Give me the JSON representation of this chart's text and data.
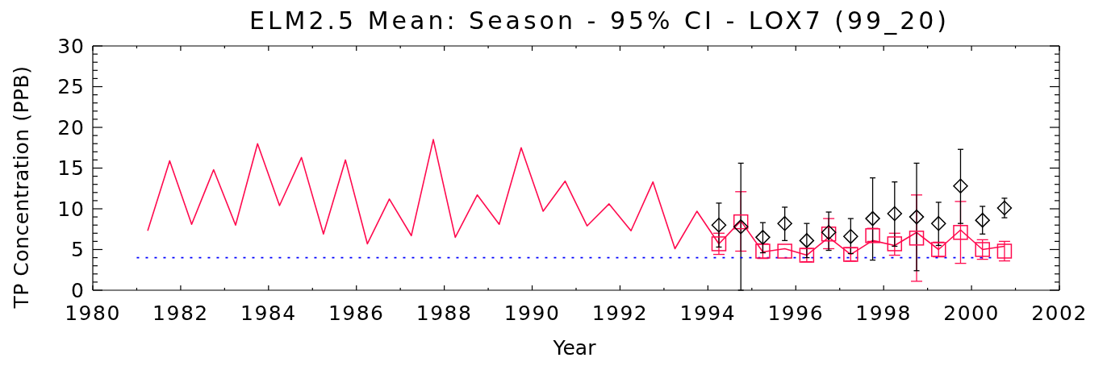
{
  "chart_data": {
    "type": "line",
    "title": "ELM2.5 Mean: Season - 95% CI - LOX7 (99_20)",
    "xlabel": "Year",
    "ylabel": "TP Concentration (PPB)",
    "xlim": [
      1980,
      2002
    ],
    "xticks": [
      1980,
      {
        "value": 1981,
        "label": null
      },
      1982,
      {
        "value": 1983,
        "label": null
      },
      1984,
      {
        "value": 1985,
        "label": null
      },
      1986,
      {
        "value": 1987,
        "label": null
      },
      1988,
      {
        "value": 1989,
        "label": null
      },
      1990,
      {
        "value": 1991,
        "label": null
      },
      1992,
      {
        "value": 1993,
        "label": null
      },
      1994,
      {
        "value": 1995,
        "label": null
      },
      1996,
      {
        "value": 1997,
        "label": null
      },
      1998,
      {
        "value": 1999,
        "label": null
      },
      2000,
      {
        "value": 2001,
        "label": null
      },
      2002
    ],
    "ylim": [
      0,
      30
    ],
    "yticks": [
      0,
      {
        "value": 1,
        "label": null
      },
      {
        "value": 2,
        "label": null
      },
      {
        "value": 3,
        "label": null
      },
      {
        "value": 4,
        "label": null
      },
      5,
      {
        "value": 6,
        "label": null
      },
      {
        "value": 7,
        "label": null
      },
      {
        "value": 8,
        "label": null
      },
      {
        "value": 9,
        "label": null
      },
      10,
      {
        "value": 11,
        "label": null
      },
      {
        "value": 12,
        "label": null
      },
      {
        "value": 13,
        "label": null
      },
      {
        "value": 14,
        "label": null
      },
      15,
      {
        "value": 16,
        "label": null
      },
      {
        "value": 17,
        "label": null
      },
      {
        "value": 18,
        "label": null
      },
      {
        "value": 19,
        "label": null
      },
      20,
      {
        "value": 21,
        "label": null
      },
      {
        "value": 22,
        "label": null
      },
      {
        "value": 23,
        "label": null
      },
      {
        "value": 24,
        "label": null
      },
      25,
      {
        "value": 26,
        "label": null
      },
      {
        "value": 27,
        "label": null
      },
      {
        "value": 28,
        "label": null
      },
      {
        "value": 29,
        "label": null
      },
      30
    ],
    "series": [
      {
        "color": "#ff0a4e",
        "x": [
          1981.25,
          1981.75,
          1982.25,
          1982.75,
          1983.25,
          1983.75,
          1984.25,
          1984.75,
          1985.25,
          1985.75,
          1986.25,
          1986.75,
          1987.25,
          1987.75,
          1988.25,
          1988.75,
          1989.25,
          1989.75,
          1990.25,
          1990.75,
          1991.25,
          1991.75,
          1992.25,
          1992.75,
          1993.25,
          1993.75,
          1994.25,
          1994.75,
          1995.25,
          1995.75,
          1996.25,
          1996.75,
          1997.25,
          1997.75,
          1998.25,
          1998.75,
          1999.25,
          1999.75,
          2000.25,
          2000.75
        ],
        "values": [
          7.3,
          15.9,
          8.1,
          14.8,
          8.0,
          18.0,
          10.4,
          16.3,
          6.9,
          16.0,
          5.7,
          11.2,
          6.7,
          18.5,
          6.5,
          11.7,
          8.1,
          17.5,
          9.7,
          13.4,
          7.9,
          10.6,
          7.3,
          13.3,
          5.1,
          9.7,
          5.7,
          8.5,
          4.7,
          5.1,
          4.3,
          6.5,
          4.4,
          6.1,
          5.5,
          7.1,
          5.0,
          7.4,
          5.0,
          5.4
        ]
      },
      {
        "type": "scatter",
        "color": "#ff0a4e",
        "marker": "square",
        "x": [
          1994.25,
          1994.75,
          1995.25,
          1995.75,
          1996.25,
          1996.75,
          1997.25,
          1997.75,
          1998.25,
          1998.75,
          1999.25,
          1999.75,
          2000.25,
          2000.75
        ],
        "values": [
          5.7,
          8.4,
          4.8,
          4.8,
          4.3,
          6.9,
          4.4,
          6.7,
          5.7,
          6.4,
          5.0,
          7.1,
          5.0,
          4.8
        ],
        "errors": [
          [
            4.4,
            7.0
          ],
          [
            4.8,
            12.1
          ],
          [
            3.9,
            5.7
          ],
          null,
          [
            3.5,
            5.1
          ],
          [
            5.1,
            8.8
          ],
          [
            3.6,
            5.2
          ],
          [
            6.0,
            7.6
          ],
          [
            4.3,
            7.0
          ],
          [
            1.1,
            11.7
          ],
          [
            4.1,
            5.9
          ],
          [
            3.3,
            10.9
          ],
          [
            3.8,
            6.2
          ],
          [
            3.6,
            6.0
          ]
        ]
      },
      {
        "type": "scatter",
        "color": "#000000",
        "marker": "diamond",
        "x": [
          1994.25,
          1994.75,
          1995.25,
          1995.75,
          1996.25,
          1996.75,
          1997.25,
          1997.75,
          1998.25,
          1998.75,
          1999.25,
          1999.75,
          2000.25,
          2000.75
        ],
        "values": [
          8.0,
          7.8,
          6.5,
          8.2,
          6.1,
          7.1,
          6.6,
          8.8,
          9.4,
          9.0,
          8.2,
          12.8,
          8.6,
          10.1
        ],
        "errors": [
          [
            5.3,
            10.7
          ],
          [
            0,
            15.6
          ],
          [
            4.6,
            8.3
          ],
          [
            6.1,
            10.2
          ],
          [
            4.0,
            8.2
          ],
          [
            4.9,
            9.6
          ],
          [
            4.5,
            8.8
          ],
          [
            3.7,
            13.8
          ],
          [
            5.4,
            13.3
          ],
          [
            2.4,
            15.6
          ],
          [
            5.5,
            10.8
          ],
          [
            8.2,
            17.3
          ],
          [
            6.9,
            10.3
          ],
          [
            8.9,
            11.3
          ]
        ]
      },
      {
        "color": "#0000ff",
        "line_style": "dotted",
        "x": [
          1981,
          2000.6
        ],
        "values": [
          4,
          4
        ]
      }
    ]
  }
}
